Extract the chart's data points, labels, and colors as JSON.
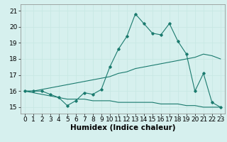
{
  "xlabel": "Humidex (Indice chaleur)",
  "background_color": "#d6f0ee",
  "line_color": "#1a7a6e",
  "grid_color": "#c8e8e4",
  "x": [
    0,
    1,
    2,
    3,
    4,
    5,
    6,
    7,
    8,
    9,
    10,
    11,
    12,
    13,
    14,
    15,
    16,
    17,
    18,
    19,
    20,
    21,
    22,
    23
  ],
  "y_main": [
    16.0,
    16.0,
    16.0,
    15.8,
    15.6,
    15.1,
    15.4,
    15.9,
    15.8,
    16.1,
    17.5,
    18.6,
    19.4,
    20.8,
    20.2,
    19.6,
    19.5,
    20.2,
    19.1,
    18.3,
    16.0,
    17.1,
    15.3,
    15.0
  ],
  "y_upper": [
    16.0,
    16.0,
    16.1,
    16.2,
    16.3,
    16.4,
    16.5,
    16.6,
    16.7,
    16.8,
    16.9,
    17.1,
    17.2,
    17.4,
    17.5,
    17.6,
    17.7,
    17.8,
    17.9,
    18.0,
    18.1,
    18.3,
    18.2,
    18.0
  ],
  "y_lower": [
    16.0,
    15.9,
    15.8,
    15.7,
    15.6,
    15.5,
    15.5,
    15.5,
    15.4,
    15.4,
    15.4,
    15.3,
    15.3,
    15.3,
    15.3,
    15.3,
    15.2,
    15.2,
    15.2,
    15.1,
    15.1,
    15.0,
    15.0,
    15.0
  ],
  "ylim": [
    14.6,
    21.4
  ],
  "xlim": [
    -0.5,
    23.5
  ],
  "yticks": [
    15,
    16,
    17,
    18,
    19,
    20,
    21
  ],
  "xticks": [
    0,
    1,
    2,
    3,
    4,
    5,
    6,
    7,
    8,
    9,
    10,
    11,
    12,
    13,
    14,
    15,
    16,
    17,
    18,
    19,
    20,
    21,
    22,
    23
  ],
  "fontsize_tick": 6.5,
  "fontsize_xlabel": 7.5
}
